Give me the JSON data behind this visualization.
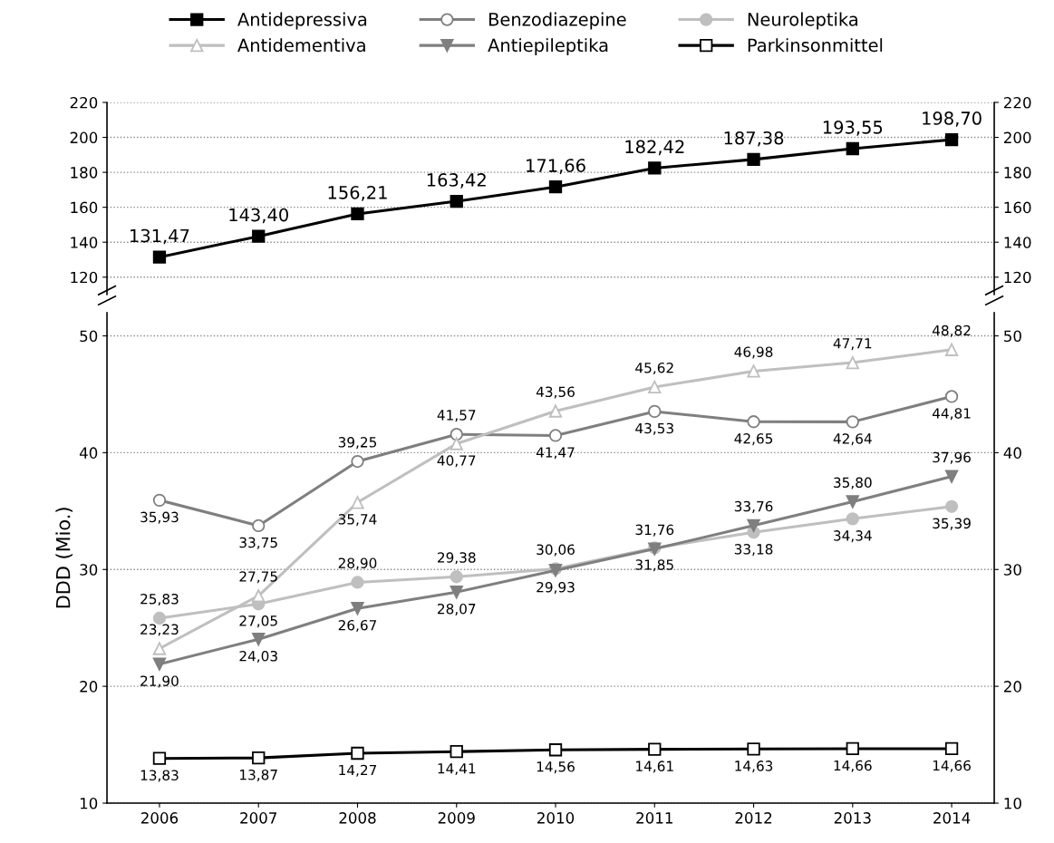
{
  "chart_data": [
    {
      "type": "line",
      "categories": [
        "2006",
        "2007",
        "2008",
        "2009",
        "2010",
        "2011",
        "2012",
        "2013",
        "2014"
      ],
      "ylim": [
        110,
        220
      ],
      "yticks": [
        120,
        140,
        160,
        180,
        200,
        220
      ],
      "y2lim": [
        110,
        220
      ],
      "y2ticks": [
        120,
        140,
        160,
        180,
        200,
        220
      ],
      "tick_labels": "y",
      "grid": "y",
      "legend": "top",
      "line_style": "solid",
      "series": [
        {
          "name": "Antidepressiva",
          "color": "#000000",
          "marker": "square",
          "values": [
            131.47,
            143.4,
            156.21,
            163.42,
            171.66,
            182.42,
            187.38,
            193.55,
            198.7
          ],
          "value_labels": [
            "131,47",
            "143,40",
            "156,21",
            "163,42",
            "171,66",
            "182,42",
            "187,38",
            "193,55",
            "198,70"
          ]
        }
      ]
    },
    {
      "type": "line",
      "categories": [
        "2006",
        "2007",
        "2008",
        "2009",
        "2010",
        "2011",
        "2012",
        "2013",
        "2014"
      ],
      "ylabel": "DDD (Mio.)",
      "ylim": [
        10,
        52
      ],
      "yticks": [
        10,
        20,
        30,
        40,
        50
      ],
      "y2lim": [
        10,
        52
      ],
      "y2ticks": [
        10,
        20,
        30,
        40,
        50
      ],
      "grid": "y",
      "legend": "top",
      "line_style": "solid",
      "series": [
        {
          "name": "Benzodiazepine",
          "color": "#7f7f7f",
          "marker": "circle",
          "values": [
            35.93,
            33.75,
            39.25,
            41.57,
            41.47,
            43.53,
            42.65,
            42.64,
            44.81
          ],
          "value_labels": [
            "35,93",
            "33,75",
            "39,25",
            "41,57",
            "41,47",
            "43,53",
            "42,65",
            "42,64",
            "44,81"
          ]
        },
        {
          "name": "Neuroleptika",
          "color": "#bfbfbf",
          "marker": "circle",
          "values": [
            25.83,
            27.05,
            28.9,
            29.38,
            30.06,
            31.85,
            33.18,
            34.34,
            35.39
          ],
          "value_labels": [
            "25,83",
            "27,05",
            "28,90",
            "29,38",
            "30,06",
            "31,85",
            "33,18",
            "34,34",
            "35,39"
          ]
        },
        {
          "name": "Antidementiva",
          "color": "#bfbfbf",
          "marker": "triangle",
          "values": [
            23.23,
            27.75,
            35.74,
            40.77,
            43.56,
            45.62,
            46.98,
            47.71,
            48.82
          ],
          "value_labels": [
            "23,23",
            "27,75",
            "35,74",
            "40,77",
            "43,56",
            "45,62",
            "46,98",
            "47,71",
            "48,82"
          ]
        },
        {
          "name": "Antiepileptika",
          "color": "#7f7f7f",
          "marker": "triangle_down",
          "values": [
            21.9,
            24.03,
            26.67,
            28.07,
            29.93,
            31.76,
            33.76,
            35.8,
            37.96
          ],
          "value_labels": [
            "21,90",
            "24,03",
            "26,67",
            "28,07",
            "29,93",
            "31,76",
            "33,76",
            "35,80",
            "37,96"
          ]
        },
        {
          "name": "Parkinsonmittel",
          "color": "#000000",
          "marker": "square",
          "values": [
            13.83,
            13.87,
            14.27,
            14.41,
            14.56,
            14.61,
            14.63,
            14.66,
            14.66
          ],
          "value_labels": [
            "13,83",
            "13,87",
            "14,27",
            "14,41",
            "14,56",
            "14,61",
            "14,63",
            "14,66",
            "14,66"
          ]
        }
      ]
    }
  ]
}
